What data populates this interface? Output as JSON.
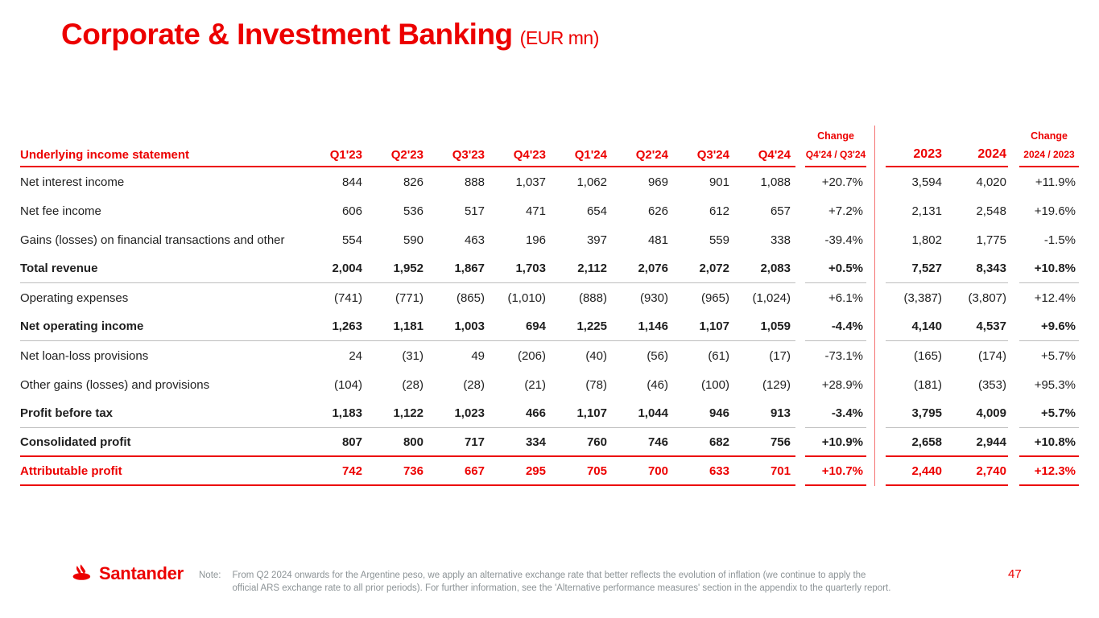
{
  "title": {
    "main": "Corporate & Investment Banking",
    "suffix": "(EUR mn)"
  },
  "colors": {
    "red": "#EC0000",
    "text": "#1F1F1F",
    "gray_line": "#BDBDBD",
    "note_gray": "#8C9396"
  },
  "table": {
    "header": {
      "label": "Underlying income statement",
      "quarters": [
        "Q1'23",
        "Q2'23",
        "Q3'23",
        "Q4'23",
        "Q1'24",
        "Q2'24",
        "Q3'24",
        "Q4'24"
      ],
      "change_label": "Change",
      "quarter_change_label": "Q4'24 / Q3'24",
      "years": [
        "2023",
        "2024"
      ],
      "year_change_label": "2024 / 2023"
    },
    "rows": [
      {
        "label": "Net interest income",
        "values": [
          "844",
          "826",
          "888",
          "1,037",
          "1,062",
          "969",
          "901",
          "1,088"
        ],
        "q_change": "+20.7%",
        "years": [
          "3,594",
          "4,020"
        ],
        "y_change": "+11.9%",
        "bold": false,
        "red": false,
        "sep_below": "none"
      },
      {
        "label": "Net fee income",
        "values": [
          "606",
          "536",
          "517",
          "471",
          "654",
          "626",
          "612",
          "657"
        ],
        "q_change": "+7.2%",
        "years": [
          "2,131",
          "2,548"
        ],
        "y_change": "+19.6%",
        "bold": false,
        "red": false,
        "sep_below": "none"
      },
      {
        "label": "Gains (losses) on financial transactions and other",
        "values": [
          "554",
          "590",
          "463",
          "196",
          "397",
          "481",
          "559",
          "338"
        ],
        "q_change": "-39.4%",
        "years": [
          "1,802",
          "1,775"
        ],
        "y_change": "-1.5%",
        "bold": false,
        "red": false,
        "sep_below": "none"
      },
      {
        "label": "Total revenue",
        "values": [
          "2,004",
          "1,952",
          "1,867",
          "1,703",
          "2,112",
          "2,076",
          "2,072",
          "2,083"
        ],
        "q_change": "+0.5%",
        "years": [
          "7,527",
          "8,343"
        ],
        "y_change": "+10.8%",
        "bold": true,
        "red": false,
        "sep_below": "gray"
      },
      {
        "label": "Operating expenses",
        "values": [
          "(741)",
          "(771)",
          "(865)",
          "(1,010)",
          "(888)",
          "(930)",
          "(965)",
          "(1,024)"
        ],
        "q_change": "+6.1%",
        "years": [
          "(3,387)",
          "(3,807)"
        ],
        "y_change": "+12.4%",
        "bold": false,
        "red": false,
        "sep_below": "none"
      },
      {
        "label": "Net operating income",
        "values": [
          "1,263",
          "1,181",
          "1,003",
          "694",
          "1,225",
          "1,146",
          "1,107",
          "1,059"
        ],
        "q_change": "-4.4%",
        "years": [
          "4,140",
          "4,537"
        ],
        "y_change": "+9.6%",
        "bold": true,
        "red": false,
        "sep_below": "gray"
      },
      {
        "label": "Net loan-loss provisions",
        "values": [
          "24",
          "(31)",
          "49",
          "(206)",
          "(40)",
          "(56)",
          "(61)",
          "(17)"
        ],
        "q_change": "-73.1%",
        "years": [
          "(165)",
          "(174)"
        ],
        "y_change": "+5.7%",
        "bold": false,
        "red": false,
        "sep_below": "none"
      },
      {
        "label": "Other gains (losses) and provisions",
        "values": [
          "(104)",
          "(28)",
          "(28)",
          "(21)",
          "(78)",
          "(46)",
          "(100)",
          "(129)"
        ],
        "q_change": "+28.9%",
        "years": [
          "(181)",
          "(353)"
        ],
        "y_change": "+95.3%",
        "bold": false,
        "red": false,
        "sep_below": "none"
      },
      {
        "label": "Profit before tax",
        "values": [
          "1,183",
          "1,122",
          "1,023",
          "466",
          "1,107",
          "1,044",
          "946",
          "913"
        ],
        "q_change": "-3.4%",
        "years": [
          "3,795",
          "4,009"
        ],
        "y_change": "+5.7%",
        "bold": true,
        "red": false,
        "sep_below": "gray"
      },
      {
        "label": "Consolidated profit",
        "values": [
          "807",
          "800",
          "717",
          "334",
          "760",
          "746",
          "682",
          "756"
        ],
        "q_change": "+10.9%",
        "years": [
          "2,658",
          "2,944"
        ],
        "y_change": "+10.8%",
        "bold": true,
        "red": false,
        "sep_below": "red"
      },
      {
        "label": "Attributable profit",
        "values": [
          "742",
          "736",
          "667",
          "295",
          "705",
          "700",
          "633",
          "701"
        ],
        "q_change": "+10.7%",
        "years": [
          "2,440",
          "2,740"
        ],
        "y_change": "+12.3%",
        "bold": true,
        "red": true,
        "sep_below": "red"
      }
    ]
  },
  "footer": {
    "logo_text": "Santander",
    "note_label": "Note:",
    "note_line1": "From Q2 2024 onwards for the Argentine peso, we apply an alternative exchange rate that better reflects the evolution of inflation (we continue to apply the",
    "note_line2": "official ARS exchange rate to all prior periods). For further information, see the 'Alternative performance measures' section in the appendix to the quarterly report.",
    "page_number": "47"
  }
}
